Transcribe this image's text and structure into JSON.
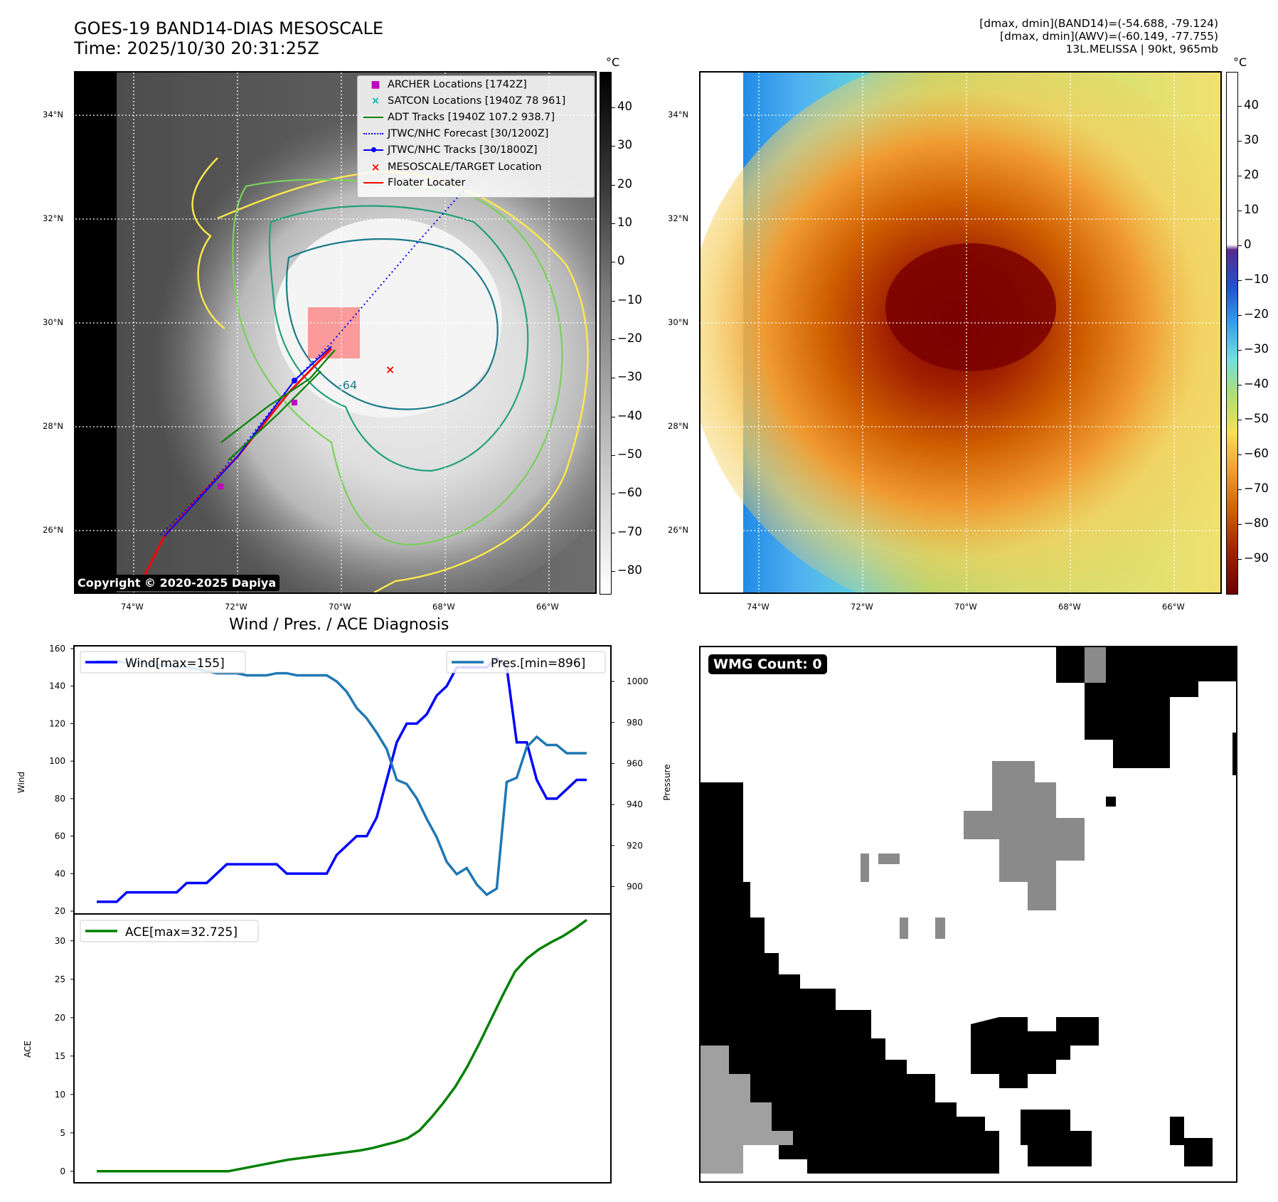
{
  "header": {
    "title_line1": "GOES-19 BAND14-DIAS MESOSCALE",
    "title_line2": "Time: 2025/10/30 20:31:25Z",
    "info_line1": "[dmax, dmin](BAND14)=(-54.688, -79.124)",
    "info_line2": "[dmax, dmin](AWV)=(-60.149, -77.755)",
    "info_line3": "13L.MELISSA | 90kt, 965mb"
  },
  "map": {
    "lat_labels": [
      "34°N",
      "32°N",
      "30°N",
      "28°N",
      "26°N"
    ],
    "lon_labels": [
      "74°W",
      "72°W",
      "70°W",
      "68°W",
      "66°W"
    ],
    "contour_label": "-64",
    "copyright": "Copyright © 2020-2025 Dapiya",
    "legend": [
      {
        "label": "ARCHER Locations [1742Z]",
        "icon": "magenta-square",
        "color": "#c000c0"
      },
      {
        "label": "SATCON Locations [1940Z 78 961]",
        "icon": "cyan-x",
        "color": "#00b0b0"
      },
      {
        "label": "ADT Tracks [1940Z 107.2 938.7]",
        "icon": "green-line",
        "color": "#008000"
      },
      {
        "label": "JTWC/NHC Forecast [30/1200Z]",
        "icon": "blue-dotted-line",
        "color": "#0000ff"
      },
      {
        "label": "JTWC/NHC Tracks [30/1800Z]",
        "icon": "blue-line-dot",
        "color": "#0000ff"
      },
      {
        "label": "MESOSCALE/TARGET Location",
        "icon": "red-x",
        "color": "#ff0000"
      },
      {
        "label": "Floater Locater",
        "icon": "red-line",
        "color": "#ff0000"
      }
    ]
  },
  "colorbar_left": {
    "unit": "°C",
    "ticks": [
      "40",
      "30",
      "20",
      "10",
      "0",
      "−10",
      "−20",
      "−30",
      "−40",
      "−50",
      "−60",
      "−70",
      "−80"
    ]
  },
  "colorbar_right": {
    "unit": "°C",
    "ticks": [
      "40",
      "30",
      "20",
      "10",
      "0",
      "−10",
      "−20",
      "−30",
      "−40",
      "−50",
      "−60",
      "−70",
      "−80",
      "−90"
    ]
  },
  "wmg": {
    "label": "WMG Count: 0"
  },
  "chart_data": [
    {
      "type": "line",
      "title": "Wind / Pres. / ACE Diagnosis",
      "ylabel": "Wind",
      "ylabel_right": "Pressure",
      "ylim": [
        20,
        160
      ],
      "ylim_right": [
        888,
        1016
      ],
      "yticks": [
        20,
        40,
        60,
        80,
        100,
        120,
        140,
        160
      ],
      "yticks_right": [
        900,
        920,
        940,
        960,
        980,
        1000
      ],
      "legend_left": "Wind[max=155]",
      "legend_right": "Pres.[min=896]",
      "series": [
        {
          "name": "Wind[max=155]",
          "color": "#0000ff",
          "axis": "left",
          "values": [
            25,
            25,
            25,
            30,
            30,
            30,
            30,
            30,
            30,
            35,
            35,
            35,
            40,
            45,
            45,
            45,
            45,
            45,
            45,
            40,
            40,
            40,
            40,
            40,
            50,
            55,
            60,
            60,
            70,
            90,
            110,
            120,
            120,
            125,
            135,
            140,
            150,
            150,
            150,
            150,
            155,
            150,
            110,
            110,
            90,
            80,
            80,
            85,
            90,
            90
          ]
        },
        {
          "name": "Pres.[min=896]",
          "color": "#1f77b4",
          "axis": "right",
          "values": [
            1010,
            1010,
            1010,
            1009,
            1009,
            1009,
            1008,
            1008,
            1007,
            1007,
            1006,
            1005,
            1004,
            1004,
            1004,
            1003,
            1003,
            1003,
            1004,
            1004,
            1003,
            1003,
            1003,
            1003,
            1000,
            995,
            987,
            982,
            975,
            967,
            952,
            950,
            943,
            933,
            924,
            912,
            906,
            909,
            901,
            896,
            899,
            951,
            953,
            968,
            973,
            969,
            969,
            965,
            965,
            965
          ]
        }
      ]
    },
    {
      "type": "line",
      "ylabel": "ACE",
      "ylim": [
        -1.5,
        33.5
      ],
      "yticks": [
        0,
        5,
        10,
        15,
        20,
        25,
        30
      ],
      "legend": "ACE[max=32.725]",
      "series": [
        {
          "name": "ACE[max=32.725]",
          "color": "#008000",
          "values": [
            0,
            0,
            0,
            0,
            0,
            0,
            0,
            0,
            0,
            0,
            0,
            0,
            0.3,
            0.6,
            0.9,
            1.2,
            1.5,
            1.7,
            1.9,
            2.1,
            2.3,
            2.5,
            2.7,
            3.0,
            3.4,
            3.8,
            4.3,
            5.3,
            7.0,
            8.9,
            11.0,
            13.6,
            16.6,
            19.8,
            23.0,
            26.0,
            27.7,
            28.9,
            29.8,
            30.6,
            31.6,
            32.725
          ]
        }
      ]
    }
  ]
}
